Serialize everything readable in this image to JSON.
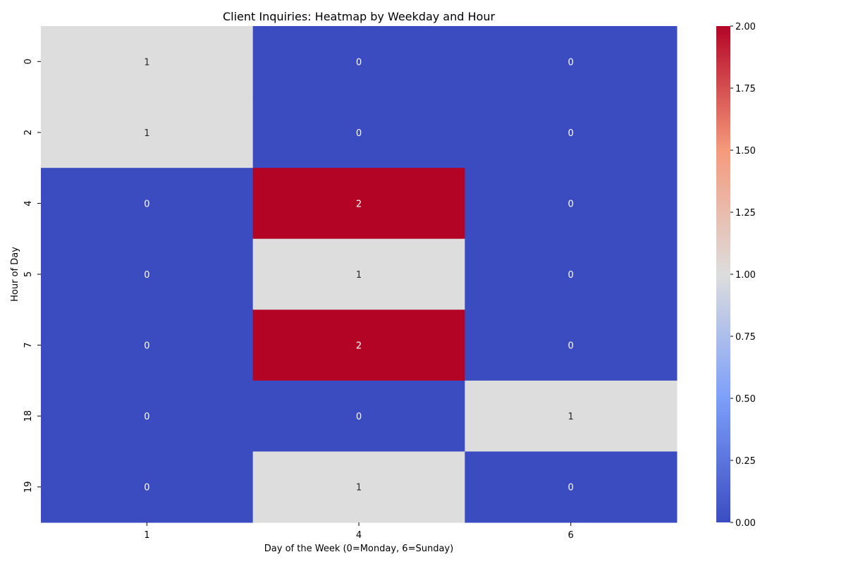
{
  "chart_data": {
    "type": "heatmap",
    "title": "Client Inquiries: Heatmap by Weekday and Hour",
    "xlabel": "Day of the Week (0=Monday, 6=Sunday)",
    "ylabel": "Hour of Day",
    "x_categories": [
      "1",
      "4",
      "6"
    ],
    "y_categories": [
      "0",
      "2",
      "4",
      "5",
      "7",
      "18",
      "19"
    ],
    "values": [
      [
        1,
        0,
        0
      ],
      [
        1,
        0,
        0
      ],
      [
        0,
        2,
        0
      ],
      [
        0,
        1,
        0
      ],
      [
        0,
        2,
        0
      ],
      [
        0,
        0,
        1
      ],
      [
        0,
        1,
        0
      ]
    ],
    "colormap": "coolwarm",
    "colorbar": {
      "range": [
        0,
        2
      ],
      "ticks": [
        "0.00",
        "0.25",
        "0.50",
        "0.75",
        "1.00",
        "1.25",
        "1.50",
        "1.75",
        "2.00"
      ],
      "tick_values": [
        0,
        0.25,
        0.5,
        0.75,
        1.0,
        1.25,
        1.5,
        1.75,
        2.0
      ]
    },
    "annotations": true,
    "colors": {
      "low": "#3b4cc0",
      "mid": "#dddddd",
      "high": "#b40426",
      "annotation_on_dark": "#ffffff",
      "annotation_on_light": "#262626"
    }
  }
}
